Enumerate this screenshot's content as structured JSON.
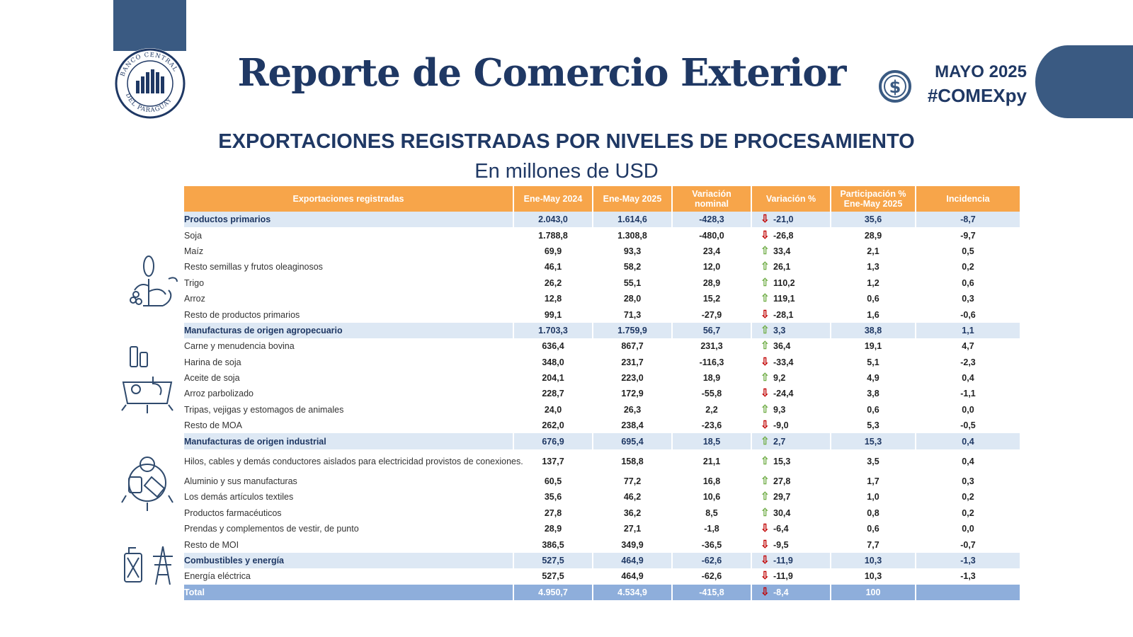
{
  "header": {
    "title": "Reporte de Comercio Exterior",
    "period": "MAYO 2025",
    "hashtag": "#COMEXpy",
    "logo_text": "BANCO CENTRAL DEL PARAGUAY",
    "brand_color": "#1f3864",
    "accent_color": "#3a5a82"
  },
  "section": {
    "subtitle": "EXPORTACIONES REGISTRADAS POR NIVELES DE PROCESAMIENTO",
    "unit": "En millones de USD"
  },
  "table": {
    "header_color": "#f7a54a",
    "columns": [
      "Exportaciones registradas",
      "Ene-May 2024",
      "Ene-May 2025",
      "Variación nominal",
      "Variación %",
      "Participación % Ene-May 2025",
      "Incidencia"
    ],
    "rows": [
      {
        "type": "cat",
        "label": "Productos primarios",
        "v2024": "2.043,0",
        "v2025": "1.614,6",
        "var_nom": "-428,3",
        "var_pct": "-21,0",
        "dir": "down",
        "part": "35,6",
        "inc": "-8,7"
      },
      {
        "type": "item",
        "label": "Soja",
        "v2024": "1.788,8",
        "v2025": "1.308,8",
        "var_nom": "-480,0",
        "var_pct": "-26,8",
        "dir": "down",
        "part": "28,9",
        "inc": "-9,7"
      },
      {
        "type": "item",
        "label": "Maíz",
        "v2024": "69,9",
        "v2025": "93,3",
        "var_nom": "23,4",
        "var_pct": "33,4",
        "dir": "up",
        "part": "2,1",
        "inc": "0,5"
      },
      {
        "type": "item",
        "label": "Resto semillas y frutos oleaginosos",
        "v2024": "46,1",
        "v2025": "58,2",
        "var_nom": "12,0",
        "var_pct": "26,1",
        "dir": "up",
        "part": "1,3",
        "inc": "0,2"
      },
      {
        "type": "item",
        "label": "Trigo",
        "v2024": "26,2",
        "v2025": "55,1",
        "var_nom": "28,9",
        "var_pct": "110,2",
        "dir": "up",
        "part": "1,2",
        "inc": "0,6"
      },
      {
        "type": "item",
        "label": "Arroz",
        "v2024": "12,8",
        "v2025": "28,0",
        "var_nom": "15,2",
        "var_pct": "119,1",
        "dir": "up",
        "part": "0,6",
        "inc": "0,3"
      },
      {
        "type": "item",
        "label": "Resto de productos primarios",
        "v2024": "99,1",
        "v2025": "71,3",
        "var_nom": "-27,9",
        "var_pct": "-28,1",
        "dir": "down",
        "part": "1,6",
        "inc": "-0,6"
      },
      {
        "type": "cat",
        "label": "Manufacturas de origen agropecuario",
        "v2024": "1.703,3",
        "v2025": "1.759,9",
        "var_nom": "56,7",
        "var_pct": "3,3",
        "dir": "up",
        "part": "38,8",
        "inc": "1,1"
      },
      {
        "type": "item",
        "label": "Carne y menudencia bovina",
        "v2024": "636,4",
        "v2025": "867,7",
        "var_nom": "231,3",
        "var_pct": "36,4",
        "dir": "up",
        "part": "19,1",
        "inc": "4,7"
      },
      {
        "type": "item",
        "label": "Harina de soja",
        "v2024": "348,0",
        "v2025": "231,7",
        "var_nom": "-116,3",
        "var_pct": "-33,4",
        "dir": "down",
        "part": "5,1",
        "inc": "-2,3"
      },
      {
        "type": "item",
        "label": "Aceite de soja",
        "v2024": "204,1",
        "v2025": "223,0",
        "var_nom": "18,9",
        "var_pct": "9,2",
        "dir": "up",
        "part": "4,9",
        "inc": "0,4"
      },
      {
        "type": "item",
        "label": "Arroz parbolizado",
        "v2024": "228,7",
        "v2025": "172,9",
        "var_nom": "-55,8",
        "var_pct": "-24,4",
        "dir": "down",
        "part": "3,8",
        "inc": "-1,1"
      },
      {
        "type": "item",
        "label": "Tripas, vejigas y estomagos de animales",
        "v2024": "24,0",
        "v2025": "26,3",
        "var_nom": "2,2",
        "var_pct": "9,3",
        "dir": "up",
        "part": "0,6",
        "inc": "0,0"
      },
      {
        "type": "item",
        "label": "Resto de MOA",
        "v2024": "262,0",
        "v2025": "238,4",
        "var_nom": "-23,6",
        "var_pct": "-9,0",
        "dir": "down",
        "part": "5,3",
        "inc": "-0,5"
      },
      {
        "type": "cat",
        "label": "Manufacturas de origen industrial",
        "v2024": "676,9",
        "v2025": "695,4",
        "var_nom": "18,5",
        "var_pct": "2,7",
        "dir": "up",
        "part": "15,3",
        "inc": "0,4"
      },
      {
        "type": "item tall",
        "label": "Hilos, cables y demás conductores aislados para electricidad provistos de conexiones.",
        "v2024": "137,7",
        "v2025": "158,8",
        "var_nom": "21,1",
        "var_pct": "15,3",
        "dir": "up",
        "part": "3,5",
        "inc": "0,4"
      },
      {
        "type": "item",
        "label": "Aluminio y sus manufacturas",
        "v2024": "60,5",
        "v2025": "77,2",
        "var_nom": "16,8",
        "var_pct": "27,8",
        "dir": "up",
        "part": "1,7",
        "inc": "0,3"
      },
      {
        "type": "item",
        "label": "Los demás artículos textiles",
        "v2024": "35,6",
        "v2025": "46,2",
        "var_nom": "10,6",
        "var_pct": "29,7",
        "dir": "up",
        "part": "1,0",
        "inc": "0,2"
      },
      {
        "type": "item",
        "label": "Productos farmacéuticos",
        "v2024": "27,8",
        "v2025": "36,2",
        "var_nom": "8,5",
        "var_pct": "30,4",
        "dir": "up",
        "part": "0,8",
        "inc": "0,2"
      },
      {
        "type": "item",
        "label": "Prendas y complementos de vestir, de punto",
        "v2024": "28,9",
        "v2025": "27,1",
        "var_nom": "-1,8",
        "var_pct": "-6,4",
        "dir": "down",
        "part": "0,6",
        "inc": "0,0"
      },
      {
        "type": "item",
        "label": "Resto de MOI",
        "v2024": "386,5",
        "v2025": "349,9",
        "var_nom": "-36,5",
        "var_pct": "-9,5",
        "dir": "down",
        "part": "7,7",
        "inc": "-0,7"
      },
      {
        "type": "cat",
        "label": "Combustibles y energía",
        "v2024": "527,5",
        "v2025": "464,9",
        "var_nom": "-62,6",
        "var_pct": "-11,9",
        "dir": "down",
        "part": "10,3",
        "inc": "-1,3"
      },
      {
        "type": "item",
        "label": "Energía eléctrica",
        "v2024": "527,5",
        "v2025": "464,9",
        "var_nom": "-62,6",
        "var_pct": "-11,9",
        "dir": "down",
        "part": "10,3",
        "inc": "-1,3"
      },
      {
        "type": "total",
        "label": "Total",
        "v2024": "4.950,7",
        "v2025": "4.534,9",
        "var_nom": "-415,8",
        "var_pct": "-8,4",
        "dir": "down",
        "part": "100",
        "inc": ""
      }
    ]
  },
  "icons": {
    "primary": "plant-grain-icon",
    "agro": "agro-manufacture-icon",
    "industrial": "industrial-gear-icon",
    "energy": "fuel-tower-icon",
    "currency": "dollar-coin-icon"
  }
}
